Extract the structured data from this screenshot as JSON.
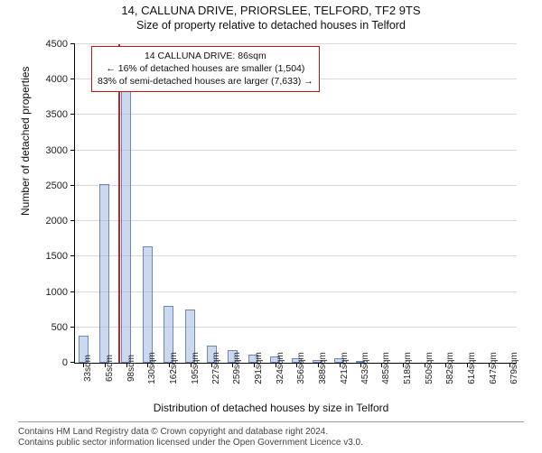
{
  "titles": {
    "line1": "14, CALLUNA DRIVE, PRIORSLEE, TELFORD, TF2 9TS",
    "line2": "Size of property relative to detached houses in Telford",
    "title_fontsize": 13
  },
  "chart": {
    "type": "histogram",
    "ylabel": "Number of detached properties",
    "xlabel": "Distribution of detached houses by size in Telford",
    "label_fontsize": 12,
    "tick_fontsize": 11,
    "background_color": "#ffffff",
    "grid_color": "#d9d9d9",
    "bar_fill": "rgba(160,185,225,0.55)",
    "bar_border": "#6d88b8",
    "refline_color": "#c8202f",
    "refline_x": 86,
    "xlim": [
      20,
      690
    ],
    "ylim": [
      0,
      4500
    ],
    "ytick_step": 500,
    "xticks": [
      33,
      65,
      98,
      130,
      162,
      195,
      227,
      259,
      291,
      324,
      356,
      388,
      421,
      453,
      485,
      518,
      550,
      582,
      614,
      647,
      679
    ],
    "xtick_suffix": "sqm",
    "bars": [
      {
        "x": 33,
        "y": 380
      },
      {
        "x": 65,
        "y": 2520
      },
      {
        "x": 98,
        "y": 4000
      },
      {
        "x": 130,
        "y": 1650
      },
      {
        "x": 162,
        "y": 800
      },
      {
        "x": 195,
        "y": 750
      },
      {
        "x": 227,
        "y": 240
      },
      {
        "x": 259,
        "y": 180
      },
      {
        "x": 291,
        "y": 120
      },
      {
        "x": 324,
        "y": 90
      },
      {
        "x": 356,
        "y": 60
      },
      {
        "x": 388,
        "y": 40
      },
      {
        "x": 421,
        "y": 70
      },
      {
        "x": 453,
        "y": 10
      }
    ],
    "bar_width_units": 15
  },
  "annotation": {
    "box_border": "#c11",
    "lines": [
      "14 CALLUNA DRIVE: 86sqm",
      "← 16% of detached houses are smaller (1,504)",
      "83% of semi-detached houses are larger (7,633) →"
    ],
    "fontsize": 10.5
  },
  "footer": {
    "line1": "Contains HM Land Registry data © Crown copyright and database right 2024.",
    "line2": "Contains public sector information licensed under the Open Government Licence v3.0.",
    "fontsize": 10,
    "color": "#444444"
  }
}
